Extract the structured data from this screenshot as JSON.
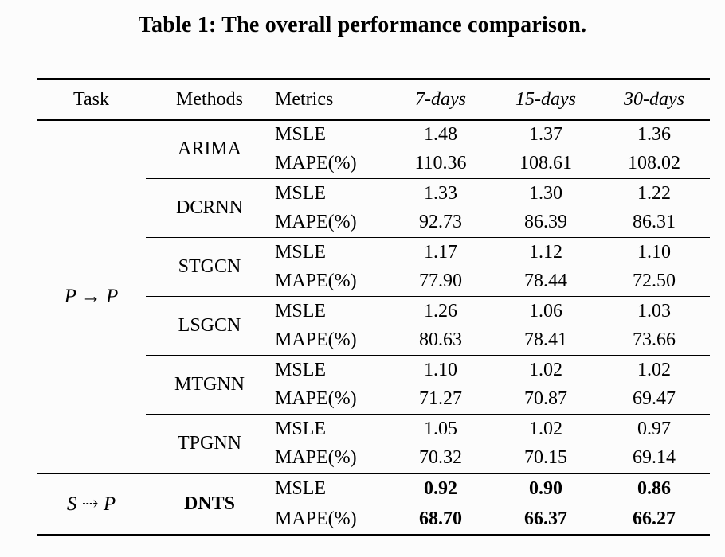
{
  "title": "Table 1: The overall performance comparison.",
  "table": {
    "columns": {
      "task": "Task",
      "methods": "Methods",
      "metrics": "Metrics",
      "horizons": [
        "7-days",
        "15-days",
        "30-days"
      ]
    },
    "metric_labels": {
      "msle": "MSLE",
      "mape": "MAPE(%)"
    },
    "task_groups": [
      {
        "task": "P → P"
      },
      {
        "task": "S ⇢ P"
      }
    ],
    "methods": [
      {
        "name": "ARIMA",
        "msle": [
          "1.48",
          "1.37",
          "1.36"
        ],
        "mape": [
          "110.36",
          "108.61",
          "108.02"
        ]
      },
      {
        "name": "DCRNN",
        "msle": [
          "1.33",
          "1.30",
          "1.22"
        ],
        "mape": [
          "92.73",
          "86.39",
          "86.31"
        ]
      },
      {
        "name": "STGCN",
        "msle": [
          "1.17",
          "1.12",
          "1.10"
        ],
        "mape": [
          "77.90",
          "78.44",
          "72.50"
        ]
      },
      {
        "name": "LSGCN",
        "msle": [
          "1.26",
          "1.06",
          "1.03"
        ],
        "mape": [
          "80.63",
          "78.41",
          "73.66"
        ]
      },
      {
        "name": "MTGNN",
        "msle": [
          "1.10",
          "1.02",
          "1.02"
        ],
        "mape": [
          "71.27",
          "70.87",
          "69.47"
        ]
      },
      {
        "name": "TPGNN",
        "msle": [
          "1.05",
          "1.02",
          "0.97"
        ],
        "mape": [
          "70.32",
          "70.15",
          "69.14"
        ]
      },
      {
        "name": "DNTS",
        "msle": [
          "0.92",
          "0.90",
          "0.86"
        ],
        "mape": [
          "68.70",
          "66.37",
          "66.27"
        ]
      }
    ]
  }
}
